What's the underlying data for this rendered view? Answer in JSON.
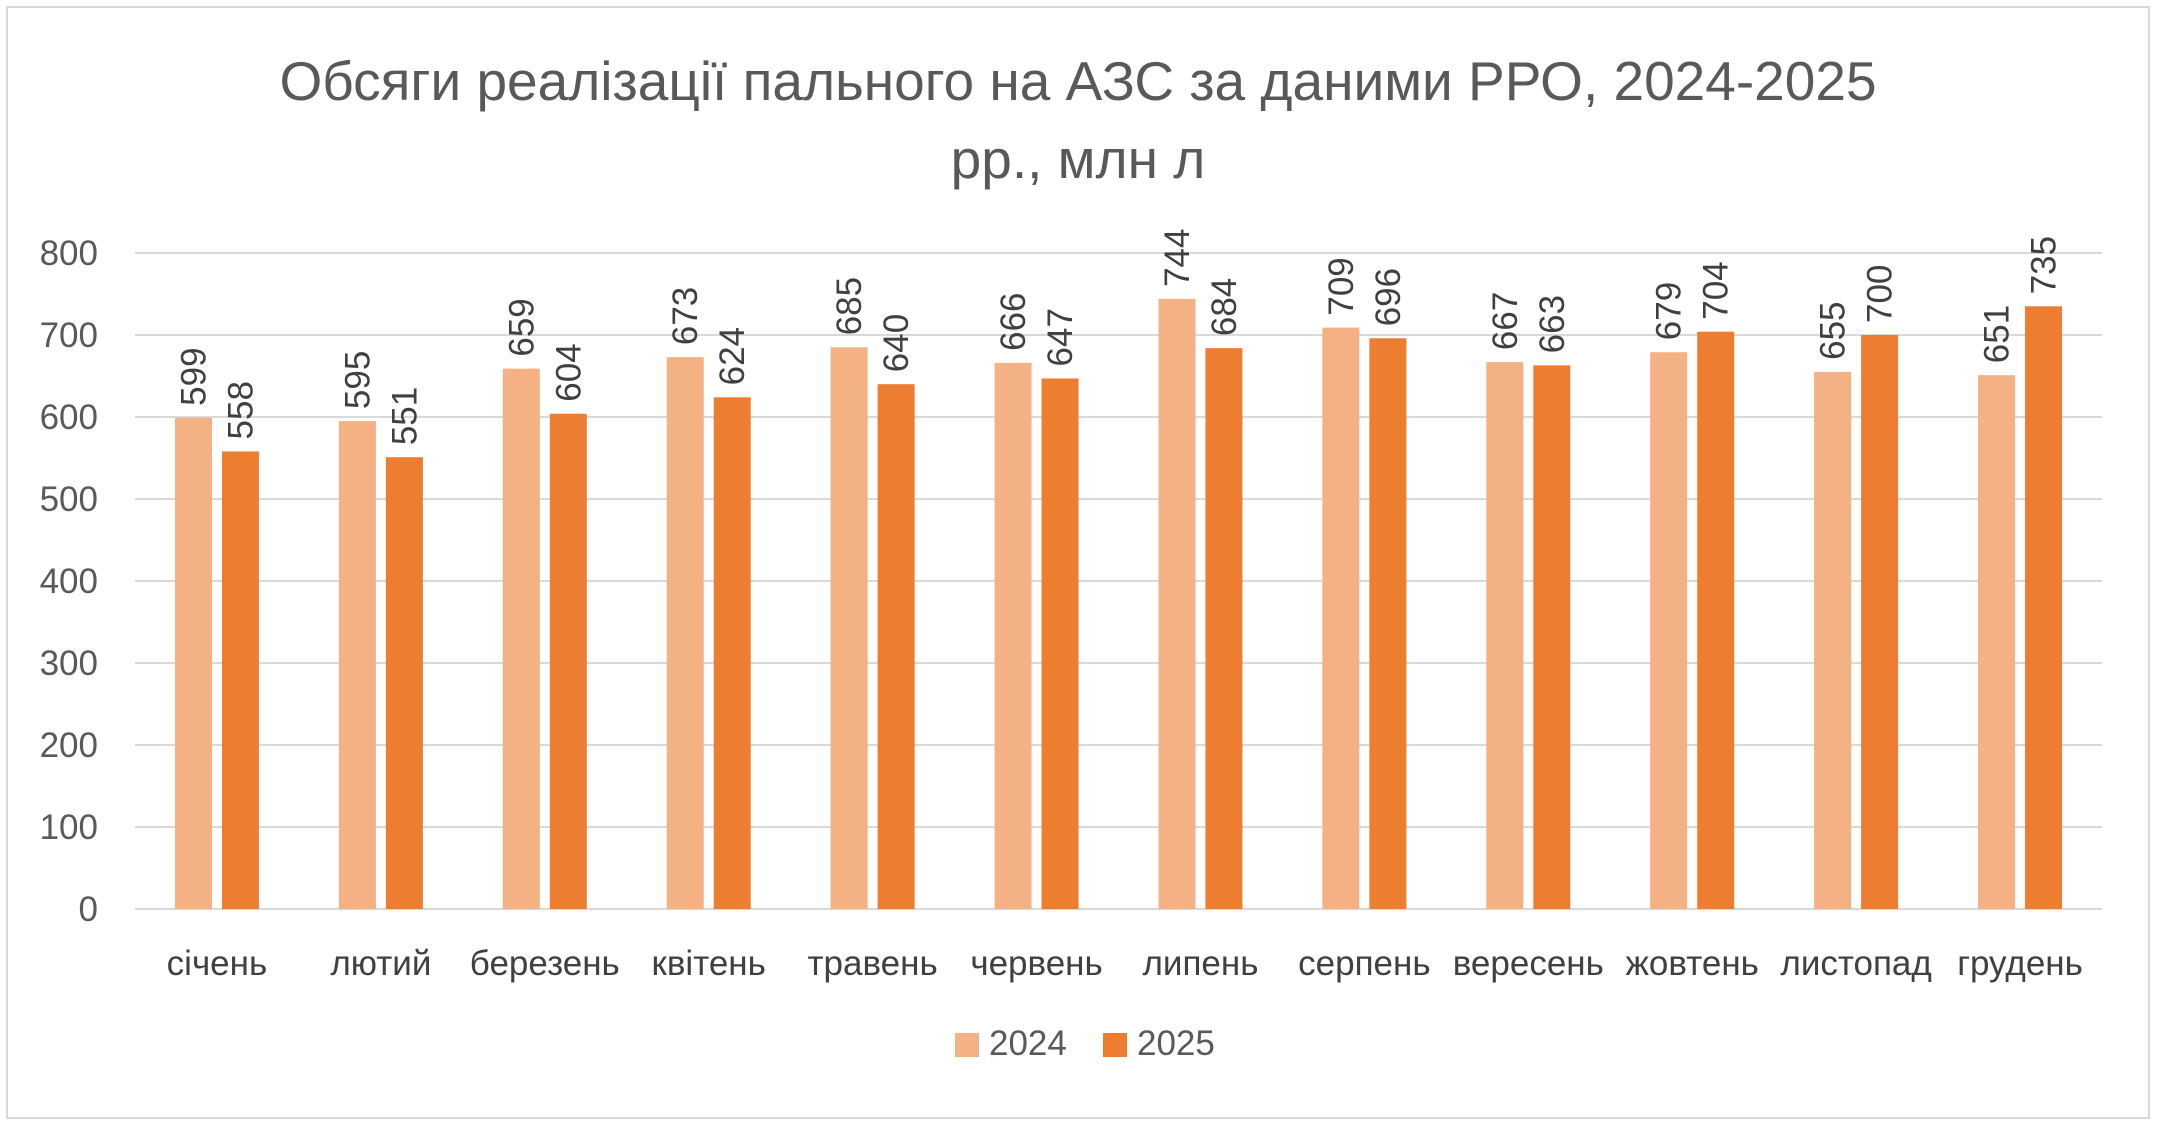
{
  "chart_data": {
    "type": "bar",
    "title_line1": "Обсяги реалізації пального на АЗС за даними РРО, 2024-2025",
    "title_line2": "рр., млн л",
    "categories": [
      "січень",
      "лютий",
      "березень",
      "квітень",
      "травень",
      "червень",
      "липень",
      "серпень",
      "вересень",
      "жовтень",
      "листопад",
      "грудень"
    ],
    "series": [
      {
        "name": "2024",
        "color": "#f4b183",
        "values": [
          599,
          595,
          659,
          673,
          685,
          666,
          744,
          709,
          667,
          679,
          655,
          651
        ]
      },
      {
        "name": "2025",
        "color": "#ed7d31",
        "values": [
          558,
          551,
          604,
          624,
          640,
          647,
          684,
          696,
          663,
          704,
          700,
          735
        ]
      }
    ],
    "ylim": [
      0,
      800
    ],
    "yticks": [
      "0",
      "100",
      "200",
      "300",
      "400",
      "500",
      "600",
      "700",
      "800"
    ],
    "grid": true,
    "legend_position": "bottom",
    "data_labels": "rotated-vertical"
  }
}
